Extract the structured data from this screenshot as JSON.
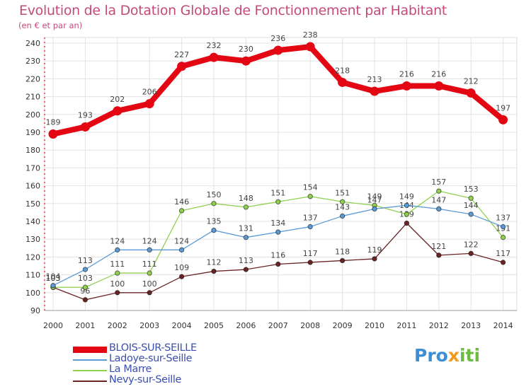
{
  "chart_data": {
    "type": "line",
    "title": "Evolution de la Dotation Globale de Fonctionnement par Habitant",
    "subtitle": "(en € et par an)",
    "xlabel": "",
    "ylabel": "",
    "x": [
      "2000",
      "2001",
      "2002",
      "2003",
      "2004",
      "2005",
      "2006",
      "2007",
      "2008",
      "2009",
      "2010",
      "2011",
      "2012",
      "2013",
      "2014"
    ],
    "ylim": [
      90,
      240
    ],
    "yticks": [
      90,
      100,
      110,
      120,
      130,
      140,
      150,
      160,
      170,
      180,
      190,
      200,
      210,
      220,
      230,
      240
    ],
    "grid": true,
    "legend_position": "bottom-left",
    "series": [
      {
        "name": "BLOIS-SUR-SEILLE",
        "color": "#e30613",
        "values": [
          189,
          193,
          202,
          206,
          227,
          232,
          230,
          236,
          238,
          218,
          213,
          216,
          216,
          212,
          197
        ]
      },
      {
        "name": "Ladoye-sur-Seille",
        "color": "#5b9bd5",
        "values": [
          104,
          113,
          124,
          124,
          124,
          135,
          131,
          134,
          137,
          143,
          147,
          149,
          147,
          144,
          137
        ]
      },
      {
        "name": "La Marre",
        "color": "#8fd14f",
        "values": [
          103,
          103,
          111,
          111,
          146,
          150,
          148,
          151,
          154,
          151,
          149,
          144,
          157,
          153,
          131
        ]
      },
      {
        "name": "Nevy-sur-Seille",
        "color": "#6b2424",
        "values": [
          103,
          96,
          100,
          100,
          109,
          112,
          113,
          116,
          117,
          118,
          119,
          139,
          121,
          122,
          117
        ]
      }
    ]
  },
  "logo": {
    "p1": "Pro",
    "p2": "x",
    "p3": "iti"
  }
}
